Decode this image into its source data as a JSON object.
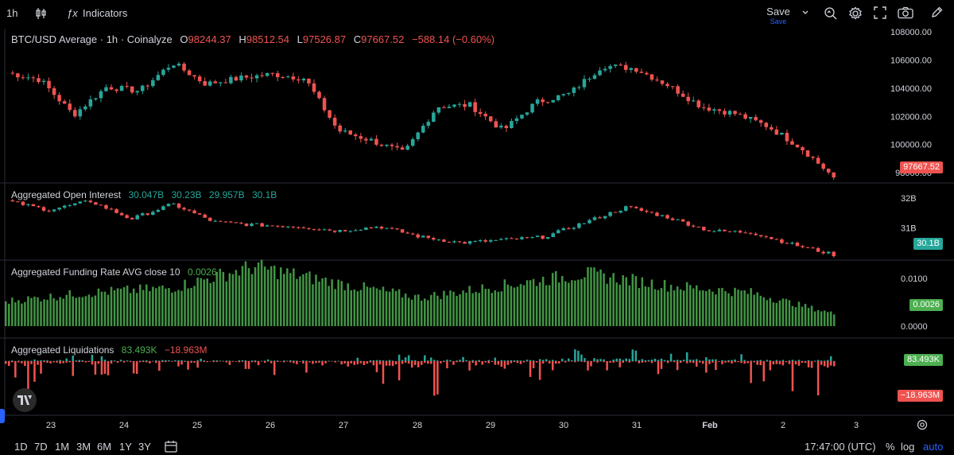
{
  "toolbar": {
    "interval": "1h",
    "indicators_label": "Indicators",
    "save_label": "Save",
    "save_sublabel": "Save"
  },
  "colors": {
    "up": "#26a69a",
    "down": "#ef5350",
    "funding": "#4caf50",
    "accent": "#2962ff"
  },
  "main": {
    "title": "BTC/USD Average · 1h · Coinalyze",
    "o_label": "O",
    "o_value": "98244.37",
    "h_label": "H",
    "h_value": "98512.54",
    "l_label": "L",
    "l_value": "97526.87",
    "c_label": "C",
    "c_value": "97667.52",
    "change": "−588.14 (−0.60%)",
    "price_tag": "97667.52",
    "y_ticks": [
      "108000.00",
      "106000.00",
      "104000.00",
      "102000.00",
      "100000.00",
      "98000.00"
    ]
  },
  "oi": {
    "title": "Aggregated Open Interest",
    "v1": "30.047B",
    "v2": "30.23B",
    "v3": "29.957B",
    "v4": "30.1B",
    "tag": "30.1B",
    "y_ticks": [
      "32B",
      "31B"
    ]
  },
  "funding": {
    "title": "Aggregated Funding Rate AVG close 10",
    "value": "0.0026",
    "tag": "0.0026",
    "y_ticks": [
      "0.0100",
      "0.0000"
    ]
  },
  "liq": {
    "title": "Aggregated Liquidations",
    "long_value": "83.493K",
    "short_value": "−18.963M",
    "tag_long": "83.493K",
    "tag_short": "−18.963M"
  },
  "time_axis": [
    "23",
    "24",
    "25",
    "26",
    "27",
    "28",
    "29",
    "30",
    "31",
    "Feb",
    "2",
    "3"
  ],
  "bottom": {
    "ranges": [
      "1D",
      "7D",
      "1M",
      "3M",
      "6M",
      "1Y",
      "3Y"
    ],
    "time": "17:47:00 (UTC)",
    "percent": "%",
    "log": "log",
    "auto": "auto"
  },
  "chart_data": [
    {
      "type": "line",
      "title": "BTC/USD Average · 1h · Coinalyze",
      "note_type": "candlestick",
      "x": [
        "Jan 22 19:00",
        "Jan 23 00:00",
        "Jan 23 12:00",
        "Jan 24 00:00",
        "Jan 24 12:00",
        "Jan 25 00:00",
        "Jan 25 12:00",
        "Jan 26 00:00",
        "Jan 26 12:00",
        "Jan 27 00:00",
        "Jan 27 06:00",
        "Jan 27 12:00",
        "Jan 27 18:00",
        "Jan 28 00:00",
        "Jan 28 12:00",
        "Jan 29 00:00",
        "Jan 29 12:00",
        "Jan 30 00:00",
        "Jan 30 12:00",
        "Jan 31 00:00",
        "Jan 31 12:00",
        "Feb 1 00:00",
        "Feb 1 12:00",
        "Feb 2 00:00",
        "Feb 2 12:00",
        "Feb 2 17:00"
      ],
      "series": [
        {
          "values": [
            105100,
            104600,
            102100,
            104100,
            103800,
            105800,
            104300,
            104700,
            105000,
            104700,
            101000,
            100300,
            99400,
            102700,
            102800,
            101000,
            103000,
            103600,
            105600,
            105400,
            104200,
            102700,
            102200,
            101300,
            99800,
            97668
          ]
        }
      ],
      "ylim": [
        97500,
        108000
      ]
    },
    {
      "type": "line",
      "title": "Aggregated Open Interest",
      "x": [
        "Jan 22 19:00",
        "Jan 23 12:00",
        "Jan 24 00:00",
        "Jan 24 12:00",
        "Jan 25 00:00",
        "Jan 25 12:00",
        "Jan 26 12:00",
        "Jan 27 00:00",
        "Jan 27 12:00",
        "Jan 28 00:00",
        "Jan 28 12:00",
        "Jan 29 00:00",
        "Jan 29 12:00",
        "Jan 30 00:00",
        "Jan 30 12:00",
        "Jan 31 00:00",
        "Jan 31 12:00",
        "Feb 1 00:00",
        "Feb 1 12:00",
        "Feb 2 00:00",
        "Feb 2 17:00"
      ],
      "series": [
        {
          "values": [
            31.9,
            31.6,
            31.9,
            31.3,
            31.8,
            31.2,
            31.1,
            31.05,
            30.9,
            31.05,
            30.7,
            30.5,
            30.6,
            30.7,
            31.2,
            31.7,
            31.35,
            30.9,
            30.85,
            30.45,
            30.1
          ]
        }
      ],
      "ylim": [
        30.0,
        32.4
      ]
    },
    {
      "type": "bar",
      "title": "Aggregated Funding Rate AVG close 10",
      "categories": [
        "Jan 23",
        "Jan 24",
        "Jan 25",
        "Jan 26",
        "Jan 27",
        "Jan 28",
        "Jan 29",
        "Jan 30",
        "Jan 31",
        "Feb 1",
        "Feb 2"
      ],
      "values": [
        0.0052,
        0.007,
        0.008,
        0.0125,
        0.009,
        0.006,
        0.0085,
        0.011,
        0.0085,
        0.007,
        0.0026
      ],
      "ylim": [
        -0.002,
        0.013
      ]
    },
    {
      "type": "bar",
      "title": "Aggregated Liquidations",
      "categories": [
        "Jan 23",
        "Jan 24",
        "Jan 25",
        "Jan 26",
        "Jan 27",
        "Jan 28",
        "Jan 29",
        "Jan 30",
        "Jan 31",
        "Feb 1",
        "Feb 2"
      ],
      "series": [
        {
          "name": "long",
          "values": [
            2,
            4,
            3,
            2,
            1,
            5,
            3,
            8,
            6,
            4,
            3
          ]
        },
        {
          "name": "short",
          "values": [
            -12,
            -8,
            -4,
            -3,
            -12,
            -14,
            -9,
            -4,
            -5,
            -8,
            -19
          ]
        }
      ]
    }
  ]
}
